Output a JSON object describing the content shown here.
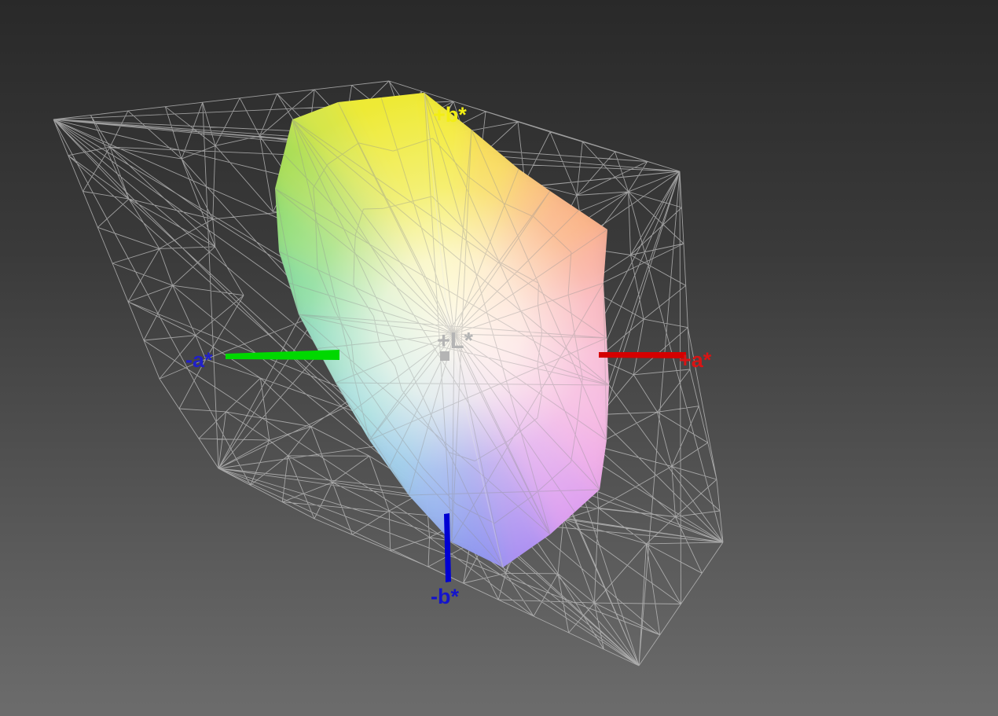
{
  "view": {
    "description": "3D CIE L*a*b* color space gamut comparison view",
    "background_top": "#292929",
    "background_bottom": "#6c6c6c"
  },
  "axes": {
    "b_plus": {
      "label": "+b*",
      "label_color": "#f2ee14"
    },
    "b_minus": {
      "label": "-b*",
      "label_color": "#1414cc",
      "bar_color": "#0000d2"
    },
    "a_plus": {
      "label": "+a*",
      "label_color": "#d81414",
      "bar_color": "#d40000"
    },
    "a_minus": {
      "label": "-a*",
      "label_color": "#2020c8",
      "bar_color": "#00d800"
    },
    "L_plus": {
      "label": "+L*",
      "label_color": "#b4b4b4"
    }
  },
  "chart_data": {
    "type": "3d-gamut-mesh",
    "title": "",
    "axis_labels": [
      "+L*",
      "+a*",
      "-a*",
      "+b*",
      "-b*"
    ],
    "legend": "none",
    "gridlines": "none",
    "series": [
      {
        "name": "reference gamut",
        "style": "wireframe triangulated mesh",
        "color": "#c3c3c3"
      },
      {
        "name": "measured display gamut",
        "style": "vertex-colored solid with white core",
        "core_color": "#fffbf0"
      }
    ],
    "solid_vertex_colors": [
      "#f3ea2f",
      "#f7d43e",
      "#f9b558",
      "#f9a26c",
      "#f89c8c",
      "#f7a2b4",
      "#f6aad2",
      "#f4aade",
      "#efa4e6",
      "#dd9cf0",
      "#ae92f2",
      "#8e96f0",
      "#84a8f0",
      "#78bce8",
      "#68cbd4",
      "#5ecfae",
      "#66d488",
      "#86da6b",
      "#aade58",
      "#d8e648",
      "#eeea36"
    ]
  }
}
